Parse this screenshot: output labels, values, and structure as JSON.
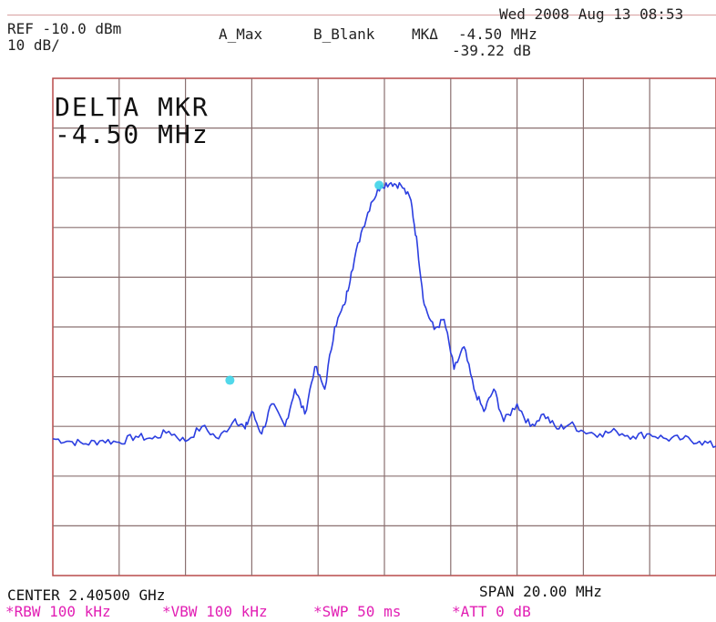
{
  "header": {
    "ref": "REF -10.0 dBm",
    "scale": "10 dB/",
    "trace_a": "A_Max",
    "trace_b": "B_Blank",
    "marker_label": "MKΔ",
    "marker_freq": "-4.50 MHz",
    "marker_amp": "-39.22 dB",
    "datetime": "Wed 2008 Aug 13 08:53"
  },
  "annotation": {
    "title": "DELTA MKR",
    "value": "-4.50 MHz"
  },
  "footer": {
    "center": "CENTER 2.40500 GHz",
    "span": "SPAN 20.00 MHz",
    "rbw": "*RBW 100 kHz",
    "vbw": "*VBW 100 kHz",
    "swp": "*SWP 50 ms",
    "att": "*ATT 0 dB"
  },
  "chart_data": {
    "type": "line",
    "center_mhz": 2405.0,
    "span_mhz": 20.0,
    "ref_level_dbm": -10.0,
    "db_per_div": 10,
    "xlim": [
      2395.0,
      2415.0
    ],
    "ylim": [
      -110,
      -10
    ],
    "grid": true,
    "colors": {
      "trace": "#2b3ee0",
      "marker": "#3fd4e8",
      "grid": "#8a7070",
      "border": "#b94a4a"
    },
    "series": [
      {
        "x": [
          2395.0,
          2395.5,
          2396.0,
          2396.5,
          2397.0,
          2397.5,
          2398.0,
          2398.5,
          2399.0,
          2399.5,
          2400.0,
          2400.5,
          2400.8,
          2401.0,
          2401.3,
          2401.6,
          2402.0,
          2402.3,
          2402.6,
          2402.9,
          2403.2,
          2403.5,
          2403.8,
          2404.0,
          2404.3,
          2404.6,
          2404.9,
          2405.2,
          2405.5,
          2405.8,
          2406.0,
          2406.2,
          2406.5,
          2406.8,
          2407.1,
          2407.4,
          2407.7,
          2408.0,
          2408.3,
          2408.6,
          2409.0,
          2409.4,
          2409.8,
          2410.2,
          2410.6,
          2411.0,
          2411.5,
          2412.0,
          2412.5,
          2413.0,
          2413.5,
          2414.0,
          2414.5,
          2415.0
        ],
        "y": [
          -82.5,
          -83.0,
          -83.5,
          -82.8,
          -83.2,
          -82.0,
          -82.5,
          -81.0,
          -83.0,
          -80.0,
          -82.5,
          -78.5,
          -80.5,
          -77.0,
          -81.5,
          -75.5,
          -80.0,
          -72.5,
          -77.5,
          -68.0,
          -72.5,
          -60.0,
          -55.5,
          -49.0,
          -41.0,
          -35.0,
          -31.5,
          -31.0,
          -31.5,
          -34.5,
          -44.0,
          -55.5,
          -60.5,
          -58.5,
          -68.5,
          -64.0,
          -72.5,
          -77.0,
          -72.5,
          -79.0,
          -75.5,
          -80.0,
          -77.5,
          -80.5,
          -79.5,
          -81.0,
          -81.5,
          -81.0,
          -82.0,
          -81.5,
          -82.5,
          -82.5,
          -83.0,
          -84.0
        ]
      }
    ],
    "markers": [
      {
        "x": 2404.84,
        "y": -31.5
      },
      {
        "x": 2400.34,
        "y": -70.72
      }
    ]
  }
}
